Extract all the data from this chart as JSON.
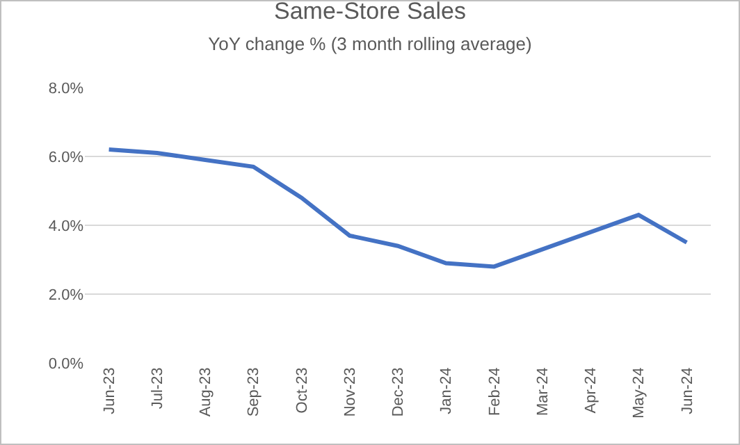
{
  "chart_data": {
    "type": "line",
    "title": "Same-Store Sales",
    "subtitle": "YoY change % (3 month rolling average)",
    "categories": [
      "Jun-23",
      "Jul-23",
      "Aug-23",
      "Sep-23",
      "Oct-23",
      "Nov-23",
      "Dec-23",
      "Jan-24",
      "Feb-24",
      "Mar-24",
      "Apr-24",
      "May-24",
      "Jun-24"
    ],
    "series": [
      {
        "color": "#4472c4",
        "values": [
          6.2,
          6.1,
          5.9,
          5.7,
          4.8,
          3.7,
          3.4,
          2.9,
          2.8,
          3.3,
          3.8,
          4.3,
          3.5
        ]
      }
    ],
    "ylim": [
      0,
      8
    ],
    "yticks": [
      {
        "value": 0,
        "label": "0.0%"
      },
      {
        "value": 2,
        "label": "2.0%"
      },
      {
        "value": 4,
        "label": "4.0%"
      },
      {
        "value": 6,
        "label": "6.0%"
      },
      {
        "value": 8,
        "label": "8.0%"
      }
    ],
    "grid": "y",
    "marker": "none",
    "line_style": "solid"
  }
}
